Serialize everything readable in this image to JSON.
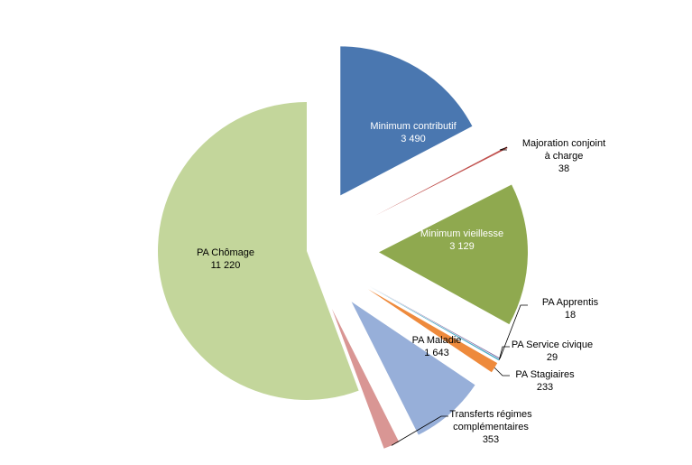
{
  "chart_data": {
    "type": "pie",
    "exploded": true,
    "start_angle": "top, clockwise",
    "slices": [
      {
        "label": "Minimum contributif",
        "value": "3 490",
        "v": 3490,
        "color": "#4a77b0"
      },
      {
        "label": "Majoration conjoint à charge",
        "value": "38",
        "v": 38,
        "color": "#c0504d"
      },
      {
        "label": "Minimum vieillesse",
        "value": "3 129",
        "v": 3129,
        "color": "#8fa94f"
      },
      {
        "label": "PA Apprentis",
        "value": "18",
        "v": 18,
        "color": "#7f6aa3"
      },
      {
        "label": "PA Service civique",
        "value": "29",
        "v": 29,
        "color": "#4bacc6"
      },
      {
        "label": "PA Stagiaires",
        "value": "233",
        "v": 233,
        "color": "#ee8a3c"
      },
      {
        "label": "PA Maladie",
        "value": "1 643",
        "v": 1643,
        "color": "#97afd9"
      },
      {
        "label": "Transferts régimes complémentaires",
        "value": "353",
        "v": 353,
        "color": "#d99694"
      },
      {
        "label": "PA Chômage",
        "value": "11 220",
        "v": 11220,
        "color": "#c3d69b"
      }
    ]
  }
}
